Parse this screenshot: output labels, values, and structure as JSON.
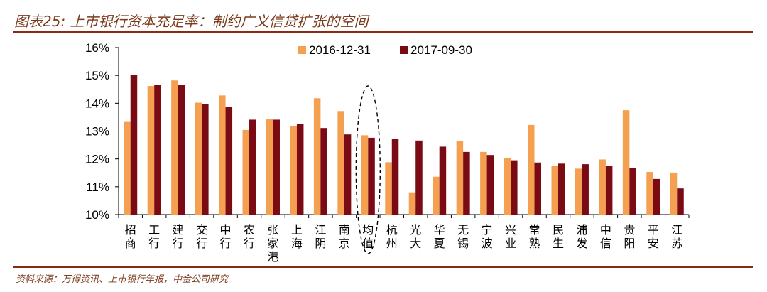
{
  "header": {
    "title": "图表25: 上市银行资本充足率：制约广义信贷扩张的空间"
  },
  "footer": {
    "source": "资料来源：万得资讯、上市银行年报，中金公司研究"
  },
  "colors": {
    "series1": "#f5a050",
    "series2": "#7a0a14",
    "rule": "#8b2a12",
    "title": "#7a3a1a"
  },
  "chart_data": {
    "type": "bar",
    "ylim": [
      10,
      16
    ],
    "yticks": [
      "10%",
      "11%",
      "12%",
      "13%",
      "14%",
      "15%",
      "16%"
    ],
    "categories": [
      "招商",
      "工行",
      "建行",
      "交行",
      "中行",
      "农行",
      "张家港",
      "上海",
      "江阴",
      "南京",
      "均值",
      "杭州",
      "光大",
      "华夏",
      "无锡",
      "宁波",
      "兴业",
      "常熟",
      "民生",
      "浦发",
      "中信",
      "贵阳",
      "平安",
      "江苏"
    ],
    "highlight": "均值",
    "series": [
      {
        "name": "2016-12-31",
        "values": [
          13.33,
          14.62,
          14.82,
          14.02,
          14.28,
          13.04,
          13.42,
          13.17,
          14.18,
          13.72,
          12.85,
          11.88,
          10.8,
          11.36,
          12.65,
          12.25,
          12.02,
          13.22,
          11.75,
          11.65,
          11.98,
          13.75,
          11.53,
          11.51
        ]
      },
      {
        "name": "2017-09-30",
        "values": [
          15.02,
          14.67,
          14.67,
          13.97,
          13.88,
          13.41,
          13.41,
          13.26,
          13.11,
          12.88,
          12.76,
          12.71,
          12.66,
          12.44,
          12.25,
          12.14,
          11.95,
          11.87,
          11.83,
          11.81,
          11.75,
          11.66,
          11.28,
          10.94
        ]
      }
    ]
  }
}
